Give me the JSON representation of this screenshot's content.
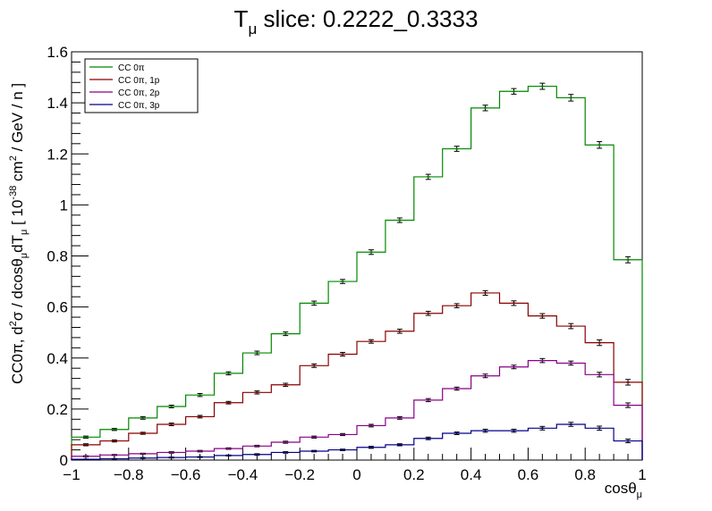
{
  "chart_data": {
    "type": "line",
    "title_main": "T",
    "title_sub": "μ",
    "title_rest": " slice: 0.2222_0.3333",
    "xlabel_main": "cosθ",
    "xlabel_sub": "μ",
    "ylabel": {
      "p1": "CC0π, d",
      "sup1": "2",
      "p2": "σ / dcosθ",
      "sub1": "μ",
      "p3": "dT",
      "sub2": "μ",
      "p4": " [ 10",
      "sup2": "-38",
      "p5": " cm",
      "sup3": "2",
      "p6": " / GeV / n ]"
    },
    "xlim": [
      -1,
      1
    ],
    "ylim": [
      0,
      1.6
    ],
    "xticks": [
      -1,
      -0.8,
      -0.6,
      -0.4,
      -0.2,
      0,
      0.2,
      0.4,
      0.6,
      0.8,
      1
    ],
    "xtick_labels": [
      "−1",
      "−0.8",
      "−0.6",
      "−0.4",
      "−0.2",
      "0",
      "0.2",
      "0.4",
      "0.6",
      "0.8",
      "1"
    ],
    "yticks": [
      0,
      0.2,
      0.4,
      0.6,
      0.8,
      1,
      1.2,
      1.4,
      1.6
    ],
    "ytick_labels": [
      "0",
      "0.2",
      "0.4",
      "0.6",
      "0.8",
      "1",
      "1.2",
      "1.4",
      "1.6"
    ],
    "grid": false,
    "legend_position": "top-left",
    "bin_edges": [
      -1,
      -0.9,
      -0.8,
      -0.7,
      -0.6,
      -0.5,
      -0.4,
      -0.3,
      -0.2,
      -0.1,
      0,
      0.1,
      0.2,
      0.3,
      0.4,
      0.5,
      0.6,
      0.7,
      0.8,
      0.9,
      1
    ],
    "series": [
      {
        "name": "CC 0π",
        "color": "#008800",
        "values": [
          0.09,
          0.12,
          0.165,
          0.21,
          0.255,
          0.34,
          0.42,
          0.495,
          0.615,
          0.7,
          0.815,
          0.94,
          1.11,
          1.22,
          1.38,
          1.445,
          1.465,
          1.42,
          1.235,
          0.785
        ],
        "errors": [
          0.004,
          0.004,
          0.005,
          0.005,
          0.006,
          0.006,
          0.007,
          0.007,
          0.008,
          0.008,
          0.009,
          0.009,
          0.01,
          0.01,
          0.011,
          0.011,
          0.012,
          0.013,
          0.013,
          0.012
        ]
      },
      {
        "name": "CC 0π, 1p",
        "color": "#880000",
        "values": [
          0.06,
          0.075,
          0.105,
          0.14,
          0.17,
          0.225,
          0.265,
          0.295,
          0.37,
          0.415,
          0.465,
          0.505,
          0.575,
          0.605,
          0.655,
          0.615,
          0.565,
          0.525,
          0.46,
          0.305
        ],
        "errors": [
          0.004,
          0.004,
          0.004,
          0.005,
          0.005,
          0.005,
          0.006,
          0.006,
          0.007,
          0.007,
          0.007,
          0.008,
          0.008,
          0.008,
          0.009,
          0.009,
          0.009,
          0.01,
          0.011,
          0.011
        ]
      },
      {
        "name": "CC 0π, 2p",
        "color": "#880088",
        "values": [
          0.015,
          0.02,
          0.025,
          0.03,
          0.035,
          0.045,
          0.055,
          0.07,
          0.09,
          0.1,
          0.135,
          0.165,
          0.235,
          0.28,
          0.33,
          0.365,
          0.39,
          0.38,
          0.335,
          0.215
        ],
        "errors": [
          0.002,
          0.002,
          0.002,
          0.003,
          0.003,
          0.003,
          0.003,
          0.004,
          0.004,
          0.004,
          0.005,
          0.005,
          0.006,
          0.006,
          0.007,
          0.007,
          0.008,
          0.008,
          0.009,
          0.009
        ]
      },
      {
        "name": "CC 0π, 3p",
        "color": "#000088",
        "values": [
          0.003,
          0.005,
          0.008,
          0.01,
          0.012,
          0.018,
          0.022,
          0.03,
          0.035,
          0.04,
          0.05,
          0.06,
          0.085,
          0.105,
          0.115,
          0.115,
          0.125,
          0.14,
          0.125,
          0.075
        ],
        "errors": [
          0.001,
          0.001,
          0.002,
          0.002,
          0.002,
          0.002,
          0.003,
          0.003,
          0.003,
          0.003,
          0.004,
          0.004,
          0.005,
          0.005,
          0.006,
          0.006,
          0.007,
          0.008,
          0.008,
          0.007
        ]
      }
    ]
  }
}
